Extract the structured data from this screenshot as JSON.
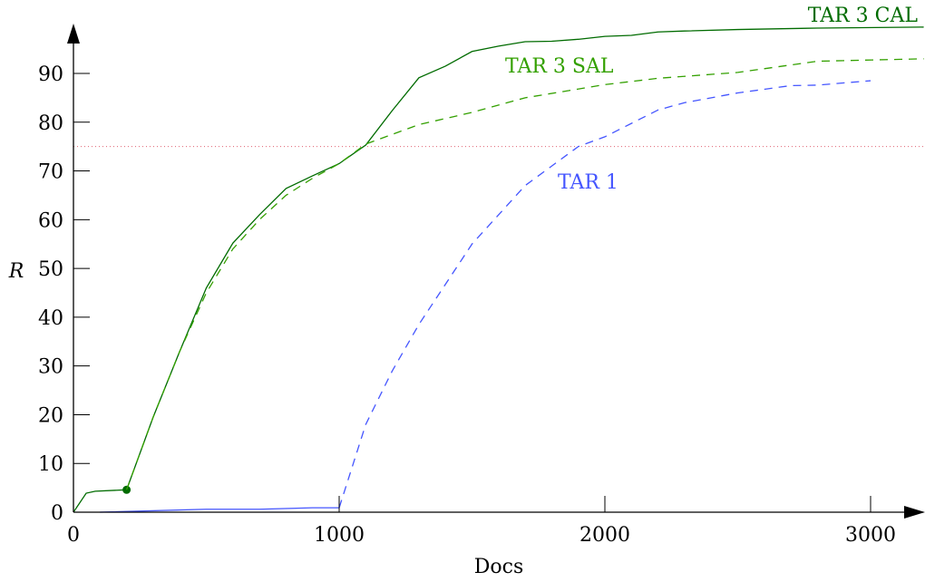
{
  "chart_data": {
    "type": "line",
    "xlabel": "Docs",
    "ylabel": "R",
    "xlim": [
      0,
      3200
    ],
    "ylim": [
      0,
      99
    ],
    "xticks": [
      0,
      1000,
      2000,
      3000
    ],
    "yticks": [
      0,
      10,
      20,
      30,
      40,
      50,
      60,
      70,
      80,
      90
    ],
    "grid": false,
    "reference_line": {
      "y": 75,
      "color": "#e06070",
      "style": "dotted"
    },
    "series": [
      {
        "name": "TAR 3 CAL",
        "color": "#006b00",
        "style": "solid",
        "marker": {
          "x": 200,
          "y": 4.6
        },
        "x": [
          0,
          48,
          82,
          200,
          300,
          400,
          500,
          600,
          700,
          800,
          900,
          1000,
          1100,
          1200,
          1300,
          1400,
          1500,
          1600,
          1700,
          1800,
          1900,
          2000,
          2100,
          2200,
          2300,
          2500,
          2800,
          3200
        ],
        "y": [
          0,
          3.9,
          4.3,
          4.6,
          19.5,
          33,
          46,
          55.2,
          61,
          66.4,
          69,
          71.5,
          75.3,
          82.4,
          89.1,
          91.5,
          94.5,
          95.6,
          96.5,
          96.6,
          97,
          97.6,
          97.8,
          98.5,
          98.7,
          99,
          99.3,
          99.5
        ]
      },
      {
        "name": "TAR 3 SAL",
        "color": "#33a000",
        "style": "dashed",
        "x": [
          200,
          300,
          400,
          500,
          600,
          700,
          800,
          900,
          1000,
          1100,
          1200,
          1300,
          1500,
          1700,
          2000,
          2200,
          2500,
          2800,
          3200
        ],
        "y": [
          4.6,
          19.5,
          33,
          45,
          54,
          60,
          65,
          68.5,
          71.5,
          75.5,
          77.5,
          79.5,
          82,
          85,
          87.7,
          89,
          90.2,
          92.5,
          93
        ]
      },
      {
        "name": "TAR 1",
        "color": "#4455ff",
        "style": "dashed",
        "solid_until": 1000,
        "x": [
          100,
          500,
          700,
          900,
          1000,
          1100,
          1200,
          1300,
          1500,
          1700,
          1900,
          2000,
          2200,
          2300,
          2500,
          2700,
          2800,
          3000
        ],
        "y": [
          0,
          0.6,
          0.6,
          0.9,
          0.9,
          18,
          29,
          38.5,
          55,
          67,
          75,
          77,
          82.5,
          84,
          86,
          87.5,
          87.6,
          88.5
        ]
      }
    ]
  }
}
